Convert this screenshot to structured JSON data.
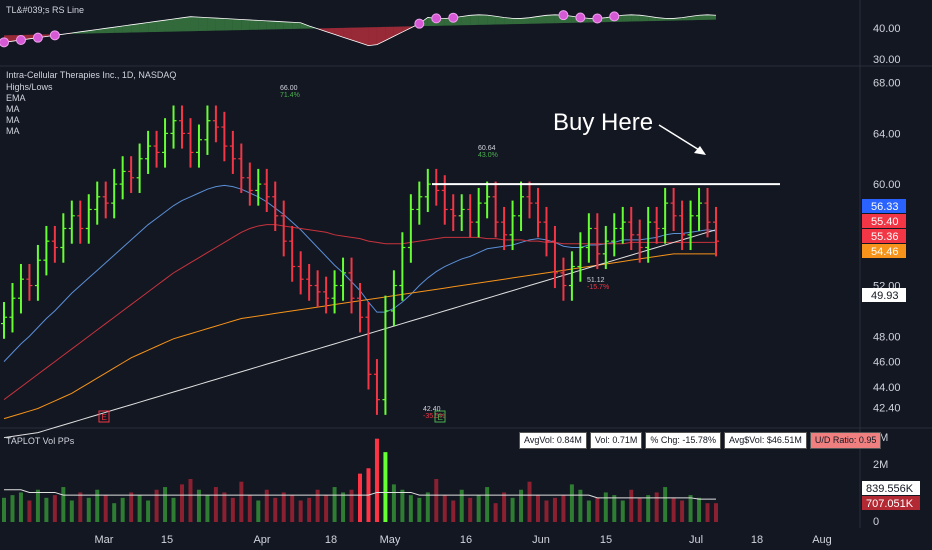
{
  "panes": {
    "rs": {
      "title": "TL&#039;s RS Line",
      "ticks": [
        "40.00",
        "30.00"
      ]
    },
    "price": {
      "title": "Intra-Cellular Therapies Inc., 1D, NASDAQ",
      "legend": [
        "Highs/Lows",
        "EMA",
        "MA",
        "MA",
        "MA"
      ],
      "annotation": "Buy Here",
      "ticks": [
        "68.00",
        "64.00",
        "60.00",
        "56.00",
        "52.00",
        "48.00",
        "46.00",
        "44.00",
        "42.40"
      ],
      "price_tags": [
        {
          "value": "56.33",
          "color": "#2962ff"
        },
        {
          "value": "55.40",
          "color": "#f23645"
        },
        {
          "value": "55.36",
          "color": "#f23645"
        },
        {
          "value": "54.46",
          "color": "#f7931a"
        },
        {
          "value": "49.93",
          "color": "#ffffff"
        }
      ],
      "highs_lows": [
        {
          "price": "66.00",
          "pct": "71.4%"
        },
        {
          "price": "60.64",
          "pct": "43.0%"
        },
        {
          "price": "51.12",
          "pct": "-15.7%"
        },
        {
          "price": "42.40",
          "pct": "-35.5%"
        }
      ],
      "markers": [
        "E",
        "E"
      ]
    },
    "volume": {
      "title": "TAPLOT Vol PPs",
      "ticks": [
        "3M",
        "2M",
        "1M",
        "0"
      ],
      "stats": [
        "AvgVol: 0.84M",
        "Vol: 0.71M",
        "% Chg: -15.78%",
        "Avg$Vol: $46.51M",
        "U/D Ratio: 0.95"
      ],
      "volume_tags": [
        {
          "value": "839.556K",
          "color": "#ffffff"
        },
        {
          "value": "707.051K",
          "color": "#b22833"
        }
      ]
    }
  },
  "x_axis": [
    "Mar",
    "15",
    "Apr",
    "18",
    "May",
    "16",
    "Jun",
    "15",
    "Jul",
    "18",
    "Aug"
  ],
  "colors": {
    "up": "#4caf50",
    "down": "#f23645",
    "bg": "#131722",
    "up_bright": "#66ff33"
  },
  "chart_data": [
    {
      "type": "line",
      "title": "Intra-Cellular Therapies Inc., 1D, NASDAQ",
      "ylim": [
        41,
        69
      ],
      "series": [
        {
          "name": "price_close",
          "values": [
            49.5,
            51,
            52.5,
            52,
            54,
            55.5,
            55,
            56.5,
            57.5,
            56.5,
            58,
            59,
            58.5,
            60,
            61,
            60.5,
            62,
            63,
            62.5,
            64,
            65,
            64,
            62.5,
            63.5,
            65,
            64.5,
            63,
            62,
            60.5,
            59.5,
            60,
            59,
            57.5,
            55.5,
            53.5,
            52.5,
            52,
            51.5,
            51,
            52,
            53,
            51,
            49.5,
            45,
            43,
            50,
            52,
            55,
            58,
            59,
            60,
            59.5,
            58,
            57.5,
            58,
            57,
            58.5,
            59,
            57,
            56,
            57.5,
            59,
            58.5,
            57,
            55.5,
            53,
            52,
            53.5,
            55,
            56.5,
            54.5,
            55.5,
            56.5,
            57,
            56,
            55,
            57,
            56.5,
            58.5,
            57.5,
            56,
            57.5,
            58.5,
            57,
            55.5
          ]
        },
        {
          "name": "ema_21",
          "values": [
            46,
            46.7,
            47.4,
            48,
            48.7,
            49.4,
            50,
            50.7,
            51.4,
            52,
            52.6,
            53.2,
            53.8,
            54.4,
            55,
            55.6,
            56.2,
            56.8,
            57.3,
            57.8,
            58.3,
            58.7,
            59,
            59.3,
            59.6,
            59.8,
            59.9,
            59.8,
            59.6,
            59.3,
            59,
            58.6,
            58.1,
            57.6,
            57,
            56.4,
            55.7,
            55,
            54.3,
            53.6,
            53,
            52.3,
            51.6,
            50.7,
            49.9,
            49.9,
            50.2,
            50.7,
            51.3,
            52,
            52.6,
            53.1,
            53.5,
            53.8,
            54.1,
            54.3,
            54.6,
            54.9,
            55,
            55.1,
            55.2,
            55.4,
            55.6,
            55.7,
            55.6,
            55.4,
            55.1,
            55,
            55,
            55.2,
            55.2,
            55.3,
            55.4,
            55.6,
            55.6,
            55.6,
            55.7,
            55.8,
            56,
            56.1,
            56.1,
            56.2,
            56.3,
            56.4,
            56.3
          ]
        },
        {
          "name": "ma_50",
          "values": [
            43,
            43.5,
            44,
            44.5,
            45,
            45.5,
            46,
            46.5,
            47,
            47.5,
            48,
            48.5,
            49,
            49.5,
            50,
            50.5,
            51,
            51.5,
            52,
            52.5,
            53,
            53.4,
            53.8,
            54.2,
            54.6,
            55,
            55.4,
            55.8,
            56.2,
            56.5,
            56.7,
            56.8,
            56.8,
            56.7,
            56.6,
            56.5,
            56.4,
            56.3,
            56.2,
            56,
            55.9,
            55.8,
            55.7,
            55.5,
            55.4,
            55.3,
            55.3,
            55.3,
            55.4,
            55.5,
            55.6,
            55.7,
            55.8,
            55.8,
            55.8,
            55.8,
            55.8,
            55.7,
            55.7,
            55.6,
            55.6,
            55.6,
            55.5,
            55.5,
            55.4,
            55.4,
            55.3,
            55.3,
            55.3,
            55.3,
            55.3,
            55.3,
            55.3,
            55.3,
            55.4,
            55.4,
            55.4,
            55.4,
            55.4,
            55.4,
            55.4,
            55.4,
            55.4,
            55.4,
            55.4
          ]
        },
        {
          "name": "ma_100",
          "values": [
            41.5,
            41.7,
            41.9,
            42.1,
            42.3,
            42.6,
            42.9,
            43.2,
            43.5,
            43.9,
            44.3,
            44.7,
            45.1,
            45.5,
            45.9,
            46.3,
            46.6,
            46.9,
            47.2,
            47.5,
            47.8,
            48,
            48.2,
            48.4,
            48.6,
            48.8,
            49,
            49.2,
            49.4,
            49.5,
            49.6,
            49.7,
            49.8,
            49.9,
            50,
            50.1,
            50.2,
            50.3,
            50.4,
            50.5,
            50.6,
            50.7,
            50.8,
            50.9,
            51,
            51.1,
            51.2,
            51.3,
            51.4,
            51.5,
            51.6,
            51.7,
            51.8,
            51.9,
            52,
            52.1,
            52.2,
            52.3,
            52.4,
            52.5,
            52.6,
            52.7,
            52.8,
            52.9,
            53,
            53.1,
            53.2,
            53.3,
            53.4,
            53.5,
            53.6,
            53.7,
            53.8,
            53.9,
            54,
            54.1,
            54.2,
            54.3,
            54.4,
            54.5,
            54.5,
            54.5,
            54.5,
            54.5,
            54.5
          ]
        },
        {
          "name": "ma_200",
          "values": [
            40,
            40.1,
            40.2,
            40.3,
            40.4,
            40.6,
            40.8,
            41,
            41.2,
            41.4,
            41.6,
            41.8,
            42,
            42.2,
            42.4,
            42.6,
            42.8,
            43,
            43.2,
            43.4,
            43.6,
            43.8,
            44,
            44.2,
            44.4,
            44.6,
            44.8,
            45,
            45.2,
            45.4,
            45.6,
            45.8,
            46,
            46.2,
            46.4,
            46.6,
            46.8,
            47,
            47.2,
            47.4,
            47.6,
            47.8,
            48,
            48.2,
            48.4,
            48.6,
            48.8,
            49,
            49.2,
            49.4,
            49.6,
            49.8,
            50,
            50.2,
            50.4,
            50.6,
            50.8,
            51,
            51.2,
            51.4,
            51.6,
            51.8,
            52,
            52.2,
            52.4,
            52.6,
            52.8,
            53,
            53.2,
            53.4,
            53.6,
            53.8,
            54,
            54.2,
            54.4,
            54.6,
            54.8,
            55,
            55.2,
            55.4,
            55.6,
            55.8,
            56,
            56.2,
            56.4
          ]
        }
      ],
      "resistance": 60,
      "last_price": 55.36
    },
    {
      "type": "bar",
      "title": "TAPLOT Vol PPs",
      "ylim": [
        0,
        3.2
      ],
      "values": [
        0.9,
        1.0,
        1.1,
        0.8,
        1.2,
        0.9,
        1.0,
        1.3,
        0.8,
        1.1,
        0.9,
        1.2,
        1.0,
        0.7,
        0.9,
        1.1,
        1.0,
        0.8,
        1.2,
        1.3,
        0.9,
        1.4,
        1.6,
        1.2,
        1.0,
        1.3,
        1.1,
        0.9,
        1.5,
        1.0,
        0.8,
        1.2,
        0.9,
        1.1,
        1.0,
        0.8,
        0.9,
        1.2,
        1.0,
        1.3,
        1.1,
        1.2,
        1.8,
        2.0,
        3.1,
        2.6,
        1.4,
        1.2,
        1.0,
        0.9,
        1.1,
        1.6,
        1.0,
        0.8,
        1.2,
        0.9,
        1.0,
        1.3,
        0.7,
        1.1,
        0.9,
        1.2,
        1.5,
        1.0,
        0.8,
        0.9,
        1.0,
        1.4,
        1.2,
        0.8,
        0.9,
        1.1,
        1.0,
        0.8,
        1.2,
        0.9,
        1.0,
        1.1,
        1.3,
        0.9,
        0.8,
        1.0,
        0.9,
        0.7,
        0.7
      ],
      "avg_line": [
        1.2,
        1.2,
        1.2,
        1.1,
        1.1,
        1.1,
        1.1,
        1.0,
        1.0,
        1.0,
        1.0,
        1.0,
        1.0,
        1.0,
        1.0,
        1.0,
        1.0,
        1.0,
        1.0,
        1.0,
        1.0,
        1.0,
        1.0,
        1.0,
        1.0,
        1.0,
        1.0,
        1.0,
        1.0,
        1.0,
        1.0,
        1.0,
        1.0,
        1.0,
        1.0,
        1.0,
        1.0,
        1.0,
        1.0,
        1.0,
        1.0,
        1.0,
        1.0,
        1.0,
        1.1,
        1.1,
        1.1,
        1.1,
        1.1,
        1.0,
        1.0,
        1.0,
        1.0,
        1.0,
        1.0,
        1.0,
        1.0,
        1.0,
        1.0,
        1.0,
        1.0,
        1.0,
        1.0,
        1.0,
        1.0,
        1.0,
        1.0,
        1.0,
        1.0,
        1.0,
        0.9,
        0.9,
        0.9,
        0.9,
        0.9,
        0.9,
        0.9,
        0.9,
        0.9,
        0.9,
        0.9,
        0.9,
        0.85,
        0.85,
        0.85
      ]
    }
  ]
}
